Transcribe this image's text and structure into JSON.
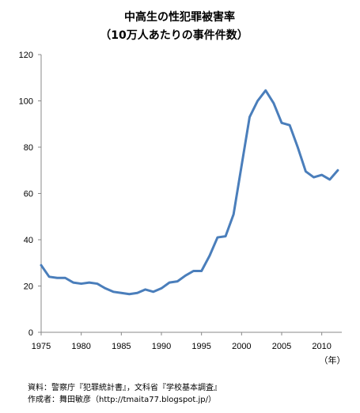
{
  "chart_data": {
    "type": "line",
    "title": "中高生の性犯罪被害率",
    "subtitle": "（10万人あたりの事件件数）",
    "x_unit_label": "（年）",
    "xlim": [
      1975,
      2012.5
    ],
    "ylim": [
      0,
      120
    ],
    "x_ticks": [
      1975,
      1980,
      1985,
      1990,
      1995,
      2000,
      2005,
      2010
    ],
    "y_ticks": [
      0,
      20,
      40,
      60,
      80,
      100,
      120
    ],
    "grid": false,
    "legend": "none",
    "series": [
      {
        "color": "#4a7ebb",
        "x": [
          1975,
          1976,
          1977,
          1978,
          1979,
          1980,
          1981,
          1982,
          1983,
          1984,
          1985,
          1986,
          1987,
          1988,
          1989,
          1990,
          1991,
          1992,
          1993,
          1994,
          1995,
          1996,
          1997,
          1998,
          1999,
          2000,
          2001,
          2002,
          2003,
          2004,
          2005,
          2006,
          2007,
          2008,
          2009,
          2010,
          2011,
          2012
        ],
        "y": [
          29.0,
          24.0,
          23.5,
          23.5,
          21.5,
          21.0,
          21.5,
          21.0,
          19.0,
          17.5,
          17.0,
          16.5,
          17.0,
          18.5,
          17.5,
          19.0,
          21.5,
          22.0,
          24.5,
          26.5,
          26.5,
          33.0,
          41.0,
          41.5,
          51.0,
          72.0,
          93.0,
          100.0,
          104.5,
          99.0,
          90.5,
          89.5,
          80.0,
          69.5,
          67.0,
          68.0,
          66.0,
          70.0
        ]
      }
    ]
  },
  "source": {
    "line1": "資料：警察庁『犯罪統計書』，文科省『学校基本調査』",
    "line2": "作成者：舞田敏彦（http://tmaita77.blogspot.jp/）"
  }
}
